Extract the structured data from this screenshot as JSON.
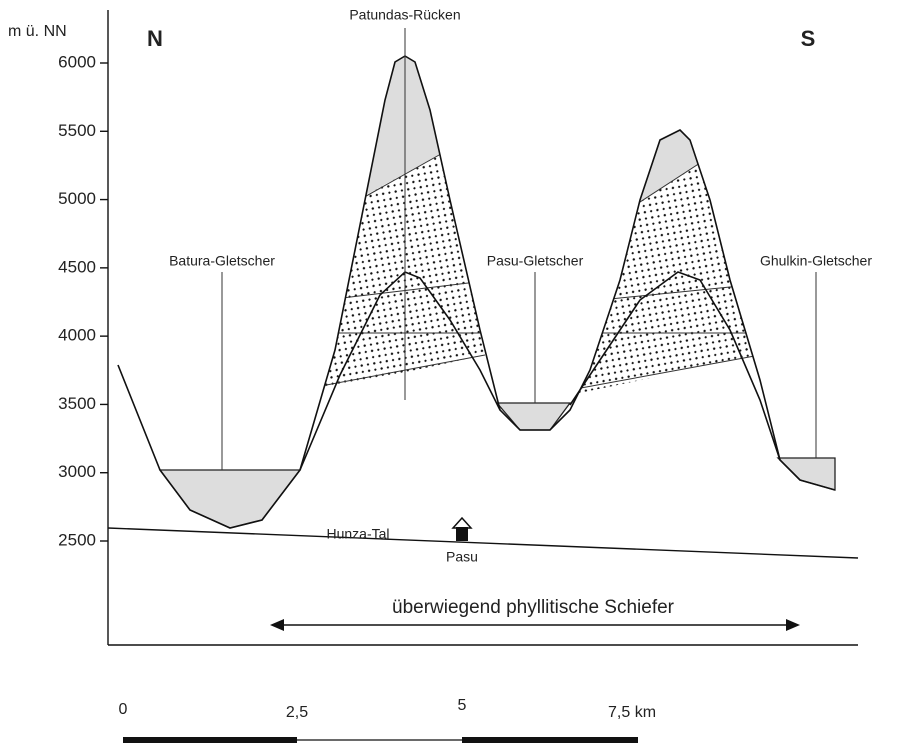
{
  "axis": {
    "unit_label": "m ü. NN",
    "yticks": [
      6000,
      5500,
      5000,
      4500,
      4000,
      3500,
      3000,
      2500
    ]
  },
  "directions": [
    "N",
    "S"
  ],
  "features": [
    "Patundas-Rücken",
    "Batura-Gletscher",
    "Pasu-Gletscher",
    "Ghulkin-Gletscher",
    "Hunza-Tal",
    "Pasu"
  ],
  "lithology": "überwiegend phyllitische Schiefer",
  "scale": [
    "0",
    "2,5",
    "5",
    "7,5 km"
  ]
}
